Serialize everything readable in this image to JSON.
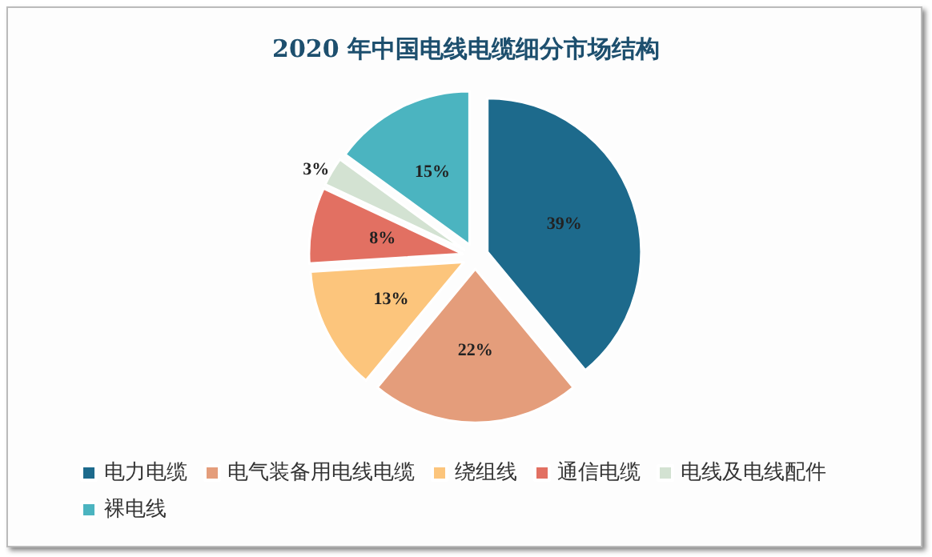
{
  "chart_data": {
    "type": "pie",
    "title": "2020 年中国电线电缆细分市场结构",
    "categories": [
      "电力电缆",
      "电气装备用电线电缆",
      "绕组线",
      "通信电缆",
      "电线及电线配件",
      "裸电线"
    ],
    "values": [
      39,
      22,
      13,
      8,
      3,
      15
    ],
    "colors": [
      "#1d6a8c",
      "#e49d7b",
      "#fcc57c",
      "#e27062",
      "#d3e2d2",
      "#4bb4c0"
    ],
    "value_labels": [
      "39%",
      "22%",
      "13%",
      "8%",
      "3%",
      "15%"
    ],
    "legend": "bottom"
  }
}
